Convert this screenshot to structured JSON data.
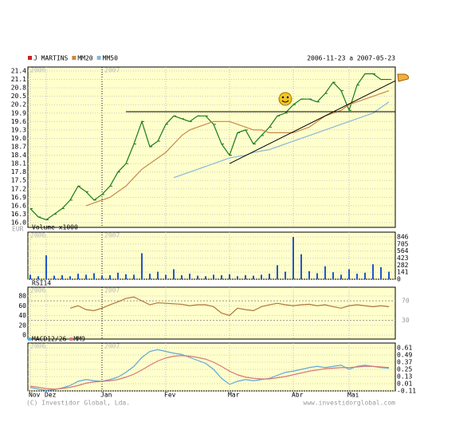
{
  "chart_data": [
    {
      "type": "line",
      "title": "2006-11-23 a 2007-05-23",
      "y_unit_label": "EUR",
      "ylim": [
        16.0,
        21.4
      ],
      "yticks": [
        {
          "value": 16.0,
          "label": "16.0"
        },
        16.3,
        16.6,
        16.9,
        17.2,
        17.5,
        17.8,
        18.1,
        18.4,
        18.7,
        {
          "value": 19.0,
          "label": "19.0"
        },
        19.3,
        19.6,
        19.9,
        20.2,
        20.5,
        20.8,
        21.1,
        21.4
      ],
      "series": [
        {
          "name": "J MARTINS",
          "color": "#1a7a1a",
          "values": [
            16.5,
            16.2,
            16.1,
            16.3,
            16.5,
            16.8,
            17.3,
            17.1,
            16.8,
            17.0,
            17.3,
            17.8,
            18.1,
            18.8,
            19.6,
            18.7,
            18.9,
            19.5,
            19.8,
            19.7,
            19.6,
            19.8,
            19.8,
            19.5,
            18.8,
            18.4,
            19.2,
            19.3,
            18.8,
            19.1,
            19.4,
            19.8,
            19.9,
            20.2,
            20.4,
            20.4,
            20.3,
            20.6,
            21.0,
            20.7,
            20.0,
            20.9,
            21.3,
            21.3,
            21.1,
            21.1
          ]
        },
        {
          "name": "MM20",
          "color": "#c88848",
          "values": [
            null,
            null,
            null,
            null,
            null,
            null,
            null,
            16.6,
            16.7,
            16.8,
            16.9,
            17.1,
            17.3,
            17.6,
            17.9,
            18.1,
            18.3,
            18.5,
            18.8,
            19.1,
            19.3,
            19.4,
            19.5,
            19.6,
            19.6,
            19.6,
            19.5,
            19.4,
            19.3,
            19.3,
            19.2,
            19.2,
            19.2,
            19.2,
            19.3,
            19.4,
            19.6,
            19.8,
            19.9,
            20.0,
            20.2,
            20.3,
            20.4,
            20.5,
            20.6,
            20.7
          ]
        },
        {
          "name": "MM50",
          "color": "#88b8d8",
          "values": [
            null,
            null,
            null,
            null,
            null,
            null,
            null,
            null,
            null,
            null,
            null,
            null,
            null,
            null,
            null,
            null,
            null,
            null,
            17.6,
            17.7,
            17.8,
            17.9,
            18.0,
            18.1,
            18.2,
            18.3,
            18.35,
            18.4,
            18.5,
            18.55,
            18.6,
            18.7,
            18.8,
            18.9,
            19.0,
            19.1,
            19.2,
            19.3,
            19.4,
            19.5,
            19.6,
            19.7,
            19.8,
            19.9,
            20.1,
            20.3
          ]
        }
      ],
      "trendlines": [
        {
          "x": [
            12,
            45
          ],
          "y": [
            19.95,
            19.95
          ]
        },
        {
          "x": [
            25,
            45
          ],
          "y": [
            18.1,
            21.05
          ]
        }
      ]
    },
    {
      "type": "bar",
      "title": "Volume x1000",
      "color": "#2255cc",
      "ylim": [
        0,
        846
      ],
      "yticks": [
        0,
        141,
        282,
        423,
        564,
        705,
        846
      ],
      "values": [
        90,
        60,
        480,
        70,
        80,
        60,
        110,
        90,
        120,
        70,
        80,
        130,
        100,
        90,
        520,
        110,
        150,
        90,
        200,
        80,
        110,
        70,
        60,
        90,
        80,
        100,
        60,
        80,
        70,
        90,
        110,
        280,
        150,
        846,
        500,
        160,
        120,
        260,
        140,
        90,
        200,
        110,
        130,
        300,
        240,
        150
      ]
    },
    {
      "type": "line",
      "title": "RSI14",
      "ylim": [
        0,
        80
      ],
      "yticks": [
        0,
        20,
        40,
        60,
        80
      ],
      "reference_lines": [
        70,
        30
      ],
      "series": [
        {
          "name": "RSI14",
          "color": "#b07838",
          "values": [
            null,
            null,
            null,
            null,
            null,
            55,
            60,
            52,
            50,
            55,
            62,
            68,
            75,
            78,
            70,
            62,
            66,
            65,
            64,
            63,
            60,
            62,
            62,
            58,
            45,
            40,
            55,
            52,
            50,
            58,
            62,
            65,
            62,
            60,
            62,
            63,
            60,
            62,
            58,
            55,
            60,
            62,
            60,
            58,
            60,
            58
          ]
        }
      ]
    },
    {
      "type": "line",
      "categories": [
        "Nov",
        null,
        "Dez",
        null,
        null,
        null,
        null,
        null,
        null,
        "Jan",
        null,
        null,
        null,
        null,
        null,
        null,
        null,
        "Fev",
        null,
        null,
        null,
        null,
        null,
        null,
        null,
        "Mar",
        null,
        null,
        null,
        null,
        null,
        null,
        null,
        "Abr",
        null,
        null,
        null,
        null,
        null,
        null,
        "Mai",
        null,
        null,
        null,
        null,
        null
      ],
      "ylim": [
        -0.11,
        0.61
      ],
      "yticks": [
        -0.11,
        0.01,
        0.13,
        0.25,
        0.37,
        0.49,
        0.61
      ],
      "series": [
        {
          "name": "MACD12/26",
          "color": "#60a8d8",
          "values": [
            -0.05,
            -0.08,
            -0.1,
            -0.09,
            -0.06,
            -0.02,
            0.05,
            0.08,
            0.06,
            0.05,
            0.08,
            0.12,
            0.2,
            0.3,
            0.45,
            0.55,
            0.58,
            0.55,
            0.52,
            0.5,
            0.45,
            0.4,
            0.35,
            0.25,
            0.1,
            0.0,
            0.05,
            0.08,
            0.06,
            0.08,
            0.1,
            0.15,
            0.2,
            0.22,
            0.25,
            0.28,
            0.3,
            0.28,
            0.3,
            0.32,
            0.25,
            0.3,
            0.32,
            0.3,
            0.28,
            0.27
          ]
        },
        {
          "name": "MM9",
          "color": "#d87878",
          "values": [
            -0.03,
            -0.05,
            -0.07,
            -0.08,
            -0.07,
            -0.05,
            -0.02,
            0.02,
            0.04,
            0.05,
            0.06,
            0.08,
            0.12,
            0.17,
            0.24,
            0.32,
            0.39,
            0.44,
            0.47,
            0.48,
            0.47,
            0.45,
            0.42,
            0.37,
            0.3,
            0.22,
            0.16,
            0.12,
            0.1,
            0.09,
            0.09,
            0.11,
            0.13,
            0.16,
            0.19,
            0.22,
            0.24,
            0.26,
            0.27,
            0.28,
            0.28,
            0.29,
            0.3,
            0.3,
            0.29,
            0.28
          ]
        }
      ]
    }
  ],
  "year_labels": [
    "2006",
    "2007"
  ],
  "footer": {
    "copyright": "(C) Investidor Global, Lda.",
    "website": "www.investidorglobal.com"
  }
}
